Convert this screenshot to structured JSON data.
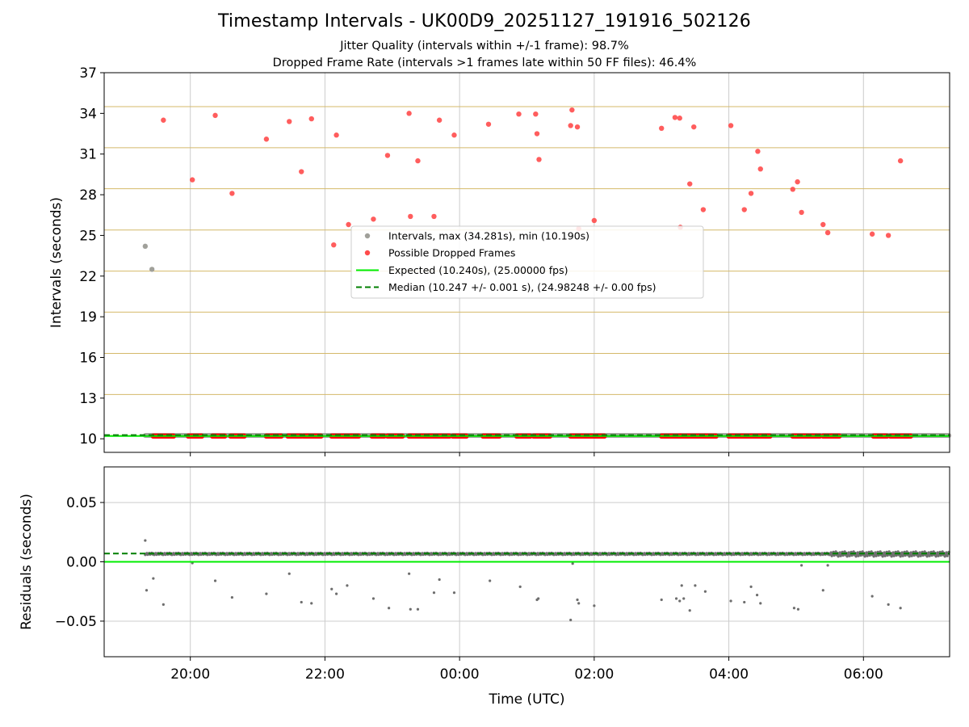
{
  "figure": {
    "title": "Timestamp Intervals - UK00D9_20251127_191916_502126",
    "subtitle_1": "Jitter Quality (intervals within +/-1 frame): 98.7%",
    "subtitle_2": "Dropped Frame Rate (intervals >1 frames late within 50 FF files): 46.4%"
  },
  "colors": {
    "intervals": "#a0a09a",
    "dropped": "#ff4b4b",
    "expected": "#00ee00",
    "median": "#007f00",
    "frame_grid": "#d4b96a",
    "grid": "#cccccc",
    "residual_points": "#6e6e6e"
  },
  "chart_data": [
    {
      "type": "scatter",
      "panel": "top",
      "xlabel": "",
      "ylabel": "Intervals (seconds)",
      "x_unit": "hours (UTC, 0 = 00:00 of first night, continuing past 24)",
      "xlim": [
        18.72,
        31.28
      ],
      "ylim": [
        9.0,
        37.0
      ],
      "yticks": [
        "10",
        "13",
        "16",
        "19",
        "22",
        "25",
        "28",
        "31",
        "34",
        "37"
      ],
      "ytick_values": [
        10,
        13,
        16,
        19,
        22,
        25,
        28,
        31,
        34,
        37
      ],
      "frame_lines": [
        10.24,
        13.27,
        16.3,
        19.34,
        22.37,
        25.4,
        28.44,
        31.47,
        34.5
      ],
      "grid": true,
      "legend_position": "center",
      "legend": [
        "Intervals, max (34.281s), min (10.190s)",
        "Possible Dropped Frames",
        "Expected (10.240s), (25.00000 fps)",
        "Median (10.247 +/- 0.001 s), (24.98248 +/- 0.00 fps)"
      ],
      "expected_y": 10.24,
      "median_y": 10.247,
      "baseline_interval": 10.247,
      "baseline_start_x": 19.33,
      "series": [
        {
          "name": "Intervals, max (34.281s), min (10.190s)",
          "points": [
            [
              19.33,
              24.2
            ],
            [
              19.43,
              22.5
            ]
          ]
        },
        {
          "name": "Possible Dropped Frames",
          "points": [
            [
              19.6,
              33.5
            ],
            [
              20.03,
              29.1
            ],
            [
              20.37,
              33.85
            ],
            [
              20.62,
              28.1
            ],
            [
              21.13,
              32.1
            ],
            [
              21.47,
              33.4
            ],
            [
              21.65,
              29.7
            ],
            [
              21.8,
              33.6
            ],
            [
              22.13,
              24.3
            ],
            [
              22.17,
              32.4
            ],
            [
              22.35,
              25.8
            ],
            [
              22.72,
              26.2
            ],
            [
              22.93,
              30.9
            ],
            [
              23.25,
              34.0
            ],
            [
              23.27,
              26.4
            ],
            [
              23.38,
              30.5
            ],
            [
              23.62,
              26.4
            ],
            [
              23.7,
              33.5
            ],
            [
              23.92,
              32.4
            ],
            [
              24.43,
              33.2
            ],
            [
              24.88,
              33.95
            ],
            [
              25.13,
              33.95
            ],
            [
              25.15,
              32.5
            ],
            [
              25.18,
              30.6
            ],
            [
              25.65,
              33.1
            ],
            [
              25.67,
              34.25
            ],
            [
              25.75,
              33.0
            ],
            [
              25.77,
              25.5
            ],
            [
              26.0,
              26.1
            ],
            [
              27.0,
              32.9
            ],
            [
              27.2,
              33.7
            ],
            [
              27.27,
              33.65
            ],
            [
              27.28,
              25.6
            ],
            [
              27.42,
              28.8
            ],
            [
              27.48,
              33.0
            ],
            [
              27.62,
              26.9
            ],
            [
              28.03,
              33.1
            ],
            [
              28.23,
              26.9
            ],
            [
              28.33,
              28.1
            ],
            [
              28.43,
              31.2
            ],
            [
              28.47,
              29.9
            ],
            [
              28.95,
              28.4
            ],
            [
              29.02,
              28.95
            ],
            [
              29.08,
              26.7
            ],
            [
              29.4,
              25.8
            ],
            [
              29.47,
              25.2
            ],
            [
              30.13,
              25.1
            ],
            [
              30.37,
              25.0
            ],
            [
              30.55,
              30.5
            ]
          ]
        },
        {
          "name": "Possible Dropped Frames (bands at ~10.2 s)",
          "segments": [
            [
              19.45,
              19.75
            ],
            [
              19.97,
              20.18
            ],
            [
              20.33,
              20.52
            ],
            [
              20.6,
              20.8
            ],
            [
              21.13,
              21.35
            ],
            [
              21.45,
              21.65
            ],
            [
              21.68,
              21.95
            ],
            [
              22.1,
              22.5
            ],
            [
              22.7,
              22.88
            ],
            [
              22.93,
              23.15
            ],
            [
              23.25,
              23.55
            ],
            [
              23.55,
              23.85
            ],
            [
              23.9,
              24.1
            ],
            [
              24.35,
              24.6
            ],
            [
              24.85,
              25.05
            ],
            [
              25.1,
              25.35
            ],
            [
              25.65,
              25.95
            ],
            [
              25.97,
              26.15
            ],
            [
              27.0,
              27.28
            ],
            [
              27.28,
              27.65
            ],
            [
              27.65,
              27.82
            ],
            [
              28.0,
              28.18
            ],
            [
              28.2,
              28.55
            ],
            [
              28.55,
              28.62
            ],
            [
              28.95,
              29.35
            ],
            [
              29.4,
              29.65
            ],
            [
              30.15,
              30.35
            ],
            [
              30.4,
              30.7
            ]
          ]
        }
      ]
    },
    {
      "type": "scatter",
      "panel": "bottom",
      "xlabel": "Time (UTC)",
      "ylabel": "Residuals (seconds)",
      "xlim": [
        18.72,
        31.28
      ],
      "ylim": [
        -0.08,
        0.08
      ],
      "xticks": [
        "20:00",
        "22:00",
        "00:00",
        "02:00",
        "04:00",
        "06:00"
      ],
      "xtick_values": [
        20,
        22,
        24,
        26,
        28,
        30
      ],
      "yticks": [
        "0.05",
        "0.00",
        "−0.05"
      ],
      "ytick_values": [
        0.05,
        0.0,
        -0.05
      ],
      "grid": true,
      "expected_y": 0.0,
      "median_y": 0.007,
      "baseline_residual": 0.0068,
      "series": [
        {
          "name": "residuals",
          "points": [
            [
              19.33,
              0.018
            ],
            [
              19.35,
              -0.024
            ],
            [
              19.45,
              -0.014
            ],
            [
              19.6,
              -0.036
            ],
            [
              20.03,
              -0.001
            ],
            [
              20.37,
              -0.016
            ],
            [
              20.62,
              -0.03
            ],
            [
              21.13,
              -0.027
            ],
            [
              21.47,
              -0.01
            ],
            [
              21.65,
              -0.034
            ],
            [
              21.8,
              -0.035
            ],
            [
              22.1,
              -0.023
            ],
            [
              22.17,
              -0.027
            ],
            [
              22.33,
              -0.02
            ],
            [
              22.72,
              -0.031
            ],
            [
              22.95,
              -0.039
            ],
            [
              23.25,
              -0.01
            ],
            [
              23.27,
              -0.04
            ],
            [
              23.38,
              -0.04
            ],
            [
              23.62,
              -0.026
            ],
            [
              23.7,
              -0.015
            ],
            [
              23.92,
              -0.026
            ],
            [
              24.45,
              -0.016
            ],
            [
              24.9,
              -0.021
            ],
            [
              25.15,
              -0.032
            ],
            [
              25.17,
              -0.031
            ],
            [
              25.65,
              -0.049
            ],
            [
              25.68,
              -0.0015
            ],
            [
              25.75,
              -0.032
            ],
            [
              25.77,
              -0.035
            ],
            [
              26.0,
              -0.037
            ],
            [
              27.0,
              -0.032
            ],
            [
              27.22,
              -0.031
            ],
            [
              27.27,
              -0.033
            ],
            [
              27.3,
              -0.02
            ],
            [
              27.33,
              -0.031
            ],
            [
              27.42,
              -0.041
            ],
            [
              27.5,
              -0.02
            ],
            [
              27.65,
              -0.025
            ],
            [
              28.03,
              -0.033
            ],
            [
              28.23,
              -0.034
            ],
            [
              28.33,
              -0.021
            ],
            [
              28.42,
              -0.028
            ],
            [
              28.47,
              -0.035
            ],
            [
              28.97,
              -0.039
            ],
            [
              29.03,
              -0.04
            ],
            [
              29.08,
              -0.003
            ],
            [
              29.4,
              -0.024
            ],
            [
              29.47,
              -0.003
            ],
            [
              30.13,
              -0.029
            ],
            [
              30.37,
              -0.036
            ],
            [
              30.55,
              -0.039
            ]
          ]
        }
      ]
    }
  ]
}
